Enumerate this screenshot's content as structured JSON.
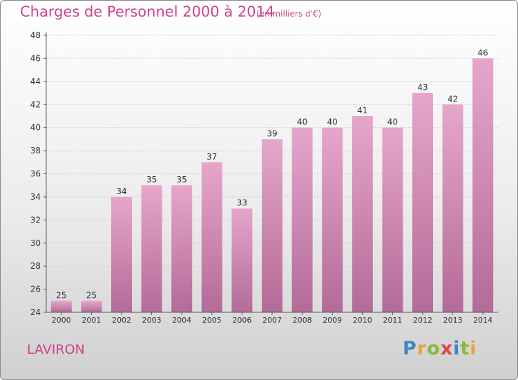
{
  "header": {
    "title": "Charges de Personnel 2000 à 2014",
    "unit": "(en milliers d'€)"
  },
  "commune": "LAVIRON",
  "brand": {
    "letters": [
      "P",
      "r",
      "o",
      "x",
      "i",
      "t",
      "i"
    ],
    "colors": [
      "#3d86c6",
      "#e8a33d",
      "#8cb83b",
      "#d94b3f",
      "#3d86c6",
      "#8cb83b",
      "#e8a33d"
    ]
  },
  "colors": {
    "bar_top": "#e6a6cc",
    "bar_bottom": "#b36b97",
    "accent": "#d04488"
  },
  "chart_data": {
    "type": "bar",
    "categories": [
      "2000",
      "2001",
      "2002",
      "2003",
      "2004",
      "2005",
      "2006",
      "2007",
      "2008",
      "2009",
      "2010",
      "2011",
      "2012",
      "2013",
      "2014"
    ],
    "values": [
      25,
      25,
      34,
      35,
      35,
      37,
      33,
      39,
      40,
      40,
      41,
      40,
      43,
      42,
      46
    ],
    "ylim": [
      24,
      48
    ],
    "yticks": [
      24,
      26,
      28,
      30,
      32,
      34,
      36,
      38,
      40,
      42,
      44,
      46,
      48
    ],
    "grid": true
  }
}
